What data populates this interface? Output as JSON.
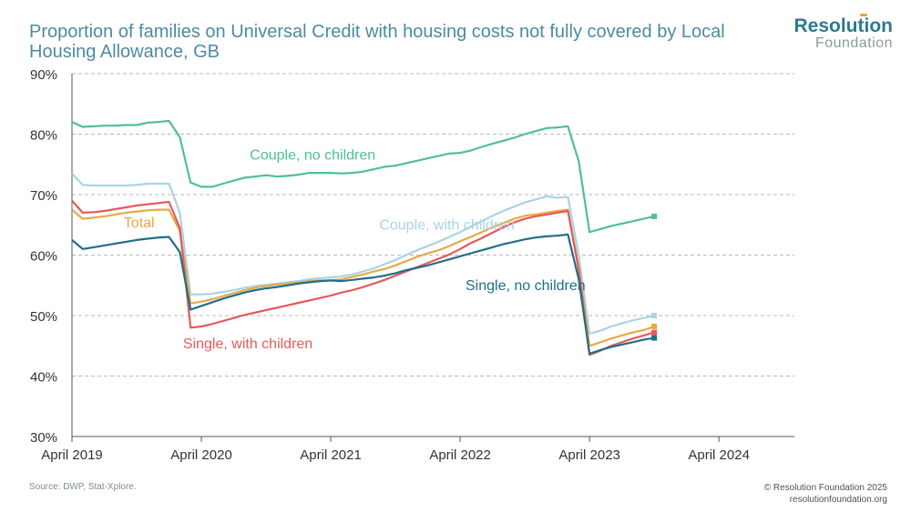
{
  "header": {
    "title": "Proportion of families on Universal Credit with housing costs not fully covered by Local Housing Allowance, GB",
    "logo_main": "Resolution",
    "logo_sub": "Foundation"
  },
  "footer": {
    "source": "Source: DWP, Stat-Xplore.",
    "copyright": "© Resolution Foundation 2025",
    "url": "resolutionfoundation.org"
  },
  "chart_data": {
    "type": "line",
    "title": "Proportion of families on Universal Credit with housing costs not fully covered by Local Housing Allowance, GB",
    "xlabel": "",
    "ylabel": "",
    "ylim": [
      30,
      90
    ],
    "xlim": [
      0,
      67
    ],
    "x_ticks": [
      {
        "x": 0,
        "label": "April 2019"
      },
      {
        "x": 12,
        "label": "April 2020"
      },
      {
        "x": 24,
        "label": "April 2021"
      },
      {
        "x": 36,
        "label": "April 2022"
      },
      {
        "x": 48,
        "label": "April 2023"
      },
      {
        "x": 60,
        "label": "April 2024"
      }
    ],
    "y_ticks": [
      {
        "y": 30,
        "label": "30%"
      },
      {
        "y": 40,
        "label": "40%"
      },
      {
        "y": 50,
        "label": "50%"
      },
      {
        "y": 60,
        "label": "60%"
      },
      {
        "y": 70,
        "label": "70%"
      },
      {
        "y": 80,
        "label": "80%"
      },
      {
        "y": 90,
        "label": "90%"
      }
    ],
    "grid": true,
    "x_unit": "months since April 2019",
    "series": [
      {
        "name": "Couple, no children",
        "color": "#4fc191",
        "points": [
          [
            0,
            82
          ],
          [
            1,
            81.2
          ],
          [
            2,
            81.3
          ],
          [
            3,
            81.4
          ],
          [
            4,
            81.4
          ],
          [
            5,
            81.5
          ],
          [
            6,
            81.5
          ],
          [
            7,
            81.9
          ],
          [
            8,
            82
          ],
          [
            9,
            82.2
          ],
          [
            10,
            79.5
          ],
          [
            11,
            72
          ],
          [
            12,
            71.3
          ],
          [
            13,
            71.3
          ],
          [
            14,
            71.8
          ],
          [
            15,
            72.3
          ],
          [
            16,
            72.8
          ],
          [
            17,
            73
          ],
          [
            18,
            73.2
          ],
          [
            19,
            73
          ],
          [
            20,
            73.1
          ],
          [
            21,
            73.3
          ],
          [
            22,
            73.6
          ],
          [
            23,
            73.6
          ],
          [
            24,
            73.6
          ],
          [
            25,
            73.5
          ],
          [
            26,
            73.6
          ],
          [
            27,
            73.8
          ],
          [
            28,
            74.2
          ],
          [
            29,
            74.6
          ],
          [
            30,
            74.8
          ],
          [
            31,
            75.2
          ],
          [
            32,
            75.6
          ],
          [
            33,
            76
          ],
          [
            34,
            76.4
          ],
          [
            35,
            76.8
          ],
          [
            36,
            76.9
          ],
          [
            37,
            77.3
          ],
          [
            38,
            77.9
          ],
          [
            39,
            78.4
          ],
          [
            40,
            78.9
          ],
          [
            41,
            79.4
          ],
          [
            42,
            80
          ],
          [
            43,
            80.5
          ],
          [
            44,
            81
          ],
          [
            45,
            81.1
          ],
          [
            46,
            81.3
          ],
          [
            47,
            75.5
          ],
          [
            48,
            63.8
          ],
          [
            49,
            64.3
          ],
          [
            50,
            64.8
          ],
          [
            51,
            65.2
          ],
          [
            52,
            65.6
          ],
          [
            53,
            66
          ],
          [
            54,
            66.4
          ]
        ],
        "label": "Couple, no children"
      },
      {
        "name": "Couple, with children",
        "color": "#a9d3e6",
        "points": [
          [
            0,
            73.5
          ],
          [
            1,
            71.6
          ],
          [
            2,
            71.5
          ],
          [
            3,
            71.5
          ],
          [
            4,
            71.5
          ],
          [
            5,
            71.5
          ],
          [
            6,
            71.6
          ],
          [
            7,
            71.8
          ],
          [
            8,
            71.8
          ],
          [
            9,
            71.8
          ],
          [
            10,
            67
          ],
          [
            11,
            53.5
          ],
          [
            12,
            53.5
          ],
          [
            13,
            53.6
          ],
          [
            14,
            53.9
          ],
          [
            15,
            54.2
          ],
          [
            16,
            54.6
          ],
          [
            17,
            54.9
          ],
          [
            18,
            55.1
          ],
          [
            19,
            55.3
          ],
          [
            20,
            55.5
          ],
          [
            21,
            55.7
          ],
          [
            22,
            56
          ],
          [
            23,
            56.2
          ],
          [
            24,
            56.3
          ],
          [
            25,
            56.5
          ],
          [
            26,
            56.8
          ],
          [
            27,
            57.3
          ],
          [
            28,
            57.8
          ],
          [
            29,
            58.5
          ],
          [
            30,
            59.2
          ],
          [
            31,
            60
          ],
          [
            32,
            60.8
          ],
          [
            33,
            61.5
          ],
          [
            34,
            62.2
          ],
          [
            35,
            63
          ],
          [
            36,
            63.8
          ],
          [
            37,
            64.7
          ],
          [
            38,
            65.6
          ],
          [
            39,
            66.5
          ],
          [
            40,
            67.3
          ],
          [
            41,
            68
          ],
          [
            42,
            68.7
          ],
          [
            43,
            69.2
          ],
          [
            44,
            69.7
          ],
          [
            45,
            69.5
          ],
          [
            46,
            69.6
          ],
          [
            47,
            60
          ],
          [
            48,
            47
          ],
          [
            49,
            47.5
          ],
          [
            50,
            48.2
          ],
          [
            51,
            48.7
          ],
          [
            52,
            49.2
          ],
          [
            53,
            49.6
          ],
          [
            54,
            50
          ]
        ],
        "label": "Couple, with children"
      },
      {
        "name": "Total",
        "color": "#e6a947",
        "points": [
          [
            0,
            67.5
          ],
          [
            1,
            66
          ],
          [
            2,
            66.2
          ],
          [
            3,
            66.4
          ],
          [
            4,
            66.7
          ],
          [
            5,
            67
          ],
          [
            6,
            67.2
          ],
          [
            7,
            67.4
          ],
          [
            8,
            67.5
          ],
          [
            9,
            67.5
          ],
          [
            10,
            64
          ],
          [
            11,
            52
          ],
          [
            12,
            52.3
          ],
          [
            13,
            52.7
          ],
          [
            14,
            53.2
          ],
          [
            15,
            53.7
          ],
          [
            16,
            54.2
          ],
          [
            17,
            54.6
          ],
          [
            18,
            54.9
          ],
          [
            19,
            55.1
          ],
          [
            20,
            55.3
          ],
          [
            21,
            55.5
          ],
          [
            22,
            55.7
          ],
          [
            23,
            55.8
          ],
          [
            24,
            55.8
          ],
          [
            25,
            56
          ],
          [
            26,
            56.4
          ],
          [
            27,
            56.8
          ],
          [
            28,
            57.3
          ],
          [
            29,
            57.7
          ],
          [
            30,
            58.3
          ],
          [
            31,
            59
          ],
          [
            32,
            59.7
          ],
          [
            33,
            60.3
          ],
          [
            34,
            60.8
          ],
          [
            35,
            61.5
          ],
          [
            36,
            62.3
          ],
          [
            37,
            63
          ],
          [
            38,
            63.8
          ],
          [
            39,
            64.6
          ],
          [
            40,
            65.3
          ],
          [
            41,
            66
          ],
          [
            42,
            66.5
          ],
          [
            43,
            66.7
          ],
          [
            44,
            67
          ],
          [
            45,
            67.3
          ],
          [
            46,
            67.5
          ],
          [
            47,
            58
          ],
          [
            48,
            45
          ],
          [
            49,
            45.6
          ],
          [
            50,
            46.2
          ],
          [
            51,
            46.7
          ],
          [
            52,
            47.2
          ],
          [
            53,
            47.6
          ],
          [
            54,
            48.2
          ]
        ],
        "label": "Total"
      },
      {
        "name": "Single, with children",
        "color": "#e55a5a",
        "points": [
          [
            0,
            69
          ],
          [
            1,
            67
          ],
          [
            2,
            67.1
          ],
          [
            3,
            67.3
          ],
          [
            4,
            67.6
          ],
          [
            5,
            67.9
          ],
          [
            6,
            68.2
          ],
          [
            7,
            68.4
          ],
          [
            8,
            68.6
          ],
          [
            9,
            68.8
          ],
          [
            10,
            64.5
          ],
          [
            11,
            48
          ],
          [
            12,
            48.2
          ],
          [
            13,
            48.6
          ],
          [
            14,
            49.1
          ],
          [
            15,
            49.6
          ],
          [
            16,
            50.1
          ],
          [
            17,
            50.5
          ],
          [
            18,
            50.9
          ],
          [
            19,
            51.3
          ],
          [
            20,
            51.7
          ],
          [
            21,
            52.1
          ],
          [
            22,
            52.5
          ],
          [
            23,
            52.9
          ],
          [
            24,
            53.3
          ],
          [
            25,
            53.8
          ],
          [
            26,
            54.2
          ],
          [
            27,
            54.7
          ],
          [
            28,
            55.3
          ],
          [
            29,
            55.9
          ],
          [
            30,
            56.6
          ],
          [
            31,
            57.3
          ],
          [
            32,
            58
          ],
          [
            33,
            58.7
          ],
          [
            34,
            59.4
          ],
          [
            35,
            60.1
          ],
          [
            36,
            61
          ],
          [
            37,
            62
          ],
          [
            38,
            62.8
          ],
          [
            39,
            63.7
          ],
          [
            40,
            64.6
          ],
          [
            41,
            65.4
          ],
          [
            42,
            66
          ],
          [
            43,
            66.4
          ],
          [
            44,
            66.7
          ],
          [
            45,
            67
          ],
          [
            46,
            67.3
          ],
          [
            47,
            57.5
          ],
          [
            48,
            43.5
          ],
          [
            49,
            44.2
          ],
          [
            50,
            45
          ],
          [
            51,
            45.6
          ],
          [
            52,
            46.2
          ],
          [
            53,
            46.7
          ],
          [
            54,
            47.2
          ]
        ],
        "label": "Single, with children"
      },
      {
        "name": "Single, no children",
        "color": "#1f6e8a",
        "points": [
          [
            0,
            62.5
          ],
          [
            1,
            61
          ],
          [
            2,
            61.3
          ],
          [
            3,
            61.6
          ],
          [
            4,
            61.9
          ],
          [
            5,
            62.2
          ],
          [
            6,
            62.5
          ],
          [
            7,
            62.7
          ],
          [
            8,
            62.9
          ],
          [
            9,
            63
          ],
          [
            10,
            60.5
          ],
          [
            11,
            51
          ],
          [
            12,
            51.6
          ],
          [
            13,
            52.2
          ],
          [
            14,
            52.8
          ],
          [
            15,
            53.3
          ],
          [
            16,
            53.8
          ],
          [
            17,
            54.2
          ],
          [
            18,
            54.5
          ],
          [
            19,
            54.7
          ],
          [
            20,
            55
          ],
          [
            21,
            55.3
          ],
          [
            22,
            55.5
          ],
          [
            23,
            55.7
          ],
          [
            24,
            55.8
          ],
          [
            25,
            55.7
          ],
          [
            26,
            55.9
          ],
          [
            27,
            56.1
          ],
          [
            28,
            56.3
          ],
          [
            29,
            56.6
          ],
          [
            30,
            57
          ],
          [
            31,
            57.5
          ],
          [
            32,
            57.9
          ],
          [
            33,
            58.3
          ],
          [
            34,
            58.8
          ],
          [
            35,
            59.3
          ],
          [
            36,
            59.8
          ],
          [
            37,
            60.3
          ],
          [
            38,
            60.8
          ],
          [
            39,
            61.3
          ],
          [
            40,
            61.8
          ],
          [
            41,
            62.2
          ],
          [
            42,
            62.6
          ],
          [
            43,
            62.9
          ],
          [
            44,
            63.1
          ],
          [
            45,
            63.2
          ],
          [
            46,
            63.4
          ],
          [
            47,
            56
          ],
          [
            48,
            43.7
          ],
          [
            49,
            44.3
          ],
          [
            50,
            44.8
          ],
          [
            51,
            45.2
          ],
          [
            52,
            45.6
          ],
          [
            53,
            46
          ],
          [
            54,
            46.3
          ]
        ],
        "label": "Single, no children"
      }
    ]
  }
}
